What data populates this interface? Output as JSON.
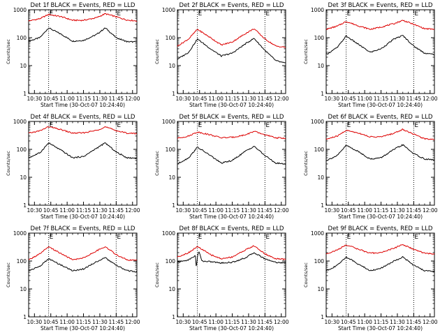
{
  "chart_data": [
    {
      "type": "line",
      "title": "Det 1f BLACK = Events, RED = LLD",
      "xlabel": "Start Time (30-Oct-07 10:24:40)",
      "ylabel": "Counts/sec",
      "x_ticks": [
        "10:30",
        "10:45",
        "11:00",
        "11:15",
        "11:30",
        "11:45",
        "12:00"
      ],
      "y_ticks": [
        "1",
        "10",
        "100",
        "1000"
      ],
      "y_scale": "log",
      "ylim": [
        1,
        1000
      ],
      "xlim": [
        "10:24:40",
        "12:04:00"
      ],
      "grid": false,
      "markers": [
        {
          "label": "E",
          "time": "10:43:00"
        },
        {
          "label": "E",
          "time": "11:45:00"
        }
      ],
      "series": [
        {
          "color": "#000000",
          "x": [
            "10:24:40",
            "10:35:00",
            "10:43:00",
            "10:55:00",
            "11:05:00",
            "11:15:00",
            "11:27:00",
            "11:35:00",
            "11:45:00",
            "11:55:00",
            "12:04:00"
          ],
          "values": [
            75,
            100,
            225,
            130,
            75,
            80,
            130,
            225,
            100,
            72,
            70
          ]
        },
        {
          "color": "#dd0000",
          "x": [
            "10:24:40",
            "10:35:00",
            "10:43:00",
            "10:55:00",
            "11:05:00",
            "11:15:00",
            "11:27:00",
            "11:35:00",
            "11:45:00",
            "11:55:00",
            "12:04:00"
          ],
          "values": [
            400,
            480,
            680,
            560,
            420,
            420,
            520,
            720,
            560,
            430,
            400
          ]
        }
      ]
    },
    {
      "type": "line",
      "title": "Det 2f BLACK = Events, RED = LLD",
      "xlabel": "Start Time (30-Oct-07 10:24:40)",
      "ylabel": "Counts/sec",
      "x_ticks": [
        "10:30",
        "10:45",
        "11:00",
        "11:15",
        "11:30",
        "11:45",
        "12:00"
      ],
      "y_ticks": [
        "1",
        "10",
        "100",
        "1000"
      ],
      "y_scale": "log",
      "ylim": [
        1,
        1000
      ],
      "xlim": [
        "10:24:40",
        "12:04:00"
      ],
      "grid": false,
      "markers": [
        {
          "label": "E",
          "time": "10:43:00"
        },
        {
          "label": "E",
          "time": "11:45:00"
        }
      ],
      "series": [
        {
          "color": "#000000",
          "x": [
            "10:24:40",
            "10:35:00",
            "10:43:00",
            "10:55:00",
            "11:05:00",
            "11:15:00",
            "11:27:00",
            "11:35:00",
            "11:45:00",
            "11:55:00",
            "12:04:00"
          ],
          "values": [
            17,
            30,
            90,
            40,
            22,
            28,
            60,
            95,
            35,
            15,
            12
          ]
        },
        {
          "color": "#dd0000",
          "x": [
            "10:24:40",
            "10:35:00",
            "10:43:00",
            "10:55:00",
            "11:05:00",
            "11:15:00",
            "11:27:00",
            "11:35:00",
            "11:45:00",
            "11:55:00",
            "12:04:00"
          ],
          "values": [
            50,
            90,
            200,
            100,
            55,
            70,
            140,
            210,
            90,
            50,
            45
          ]
        }
      ]
    },
    {
      "type": "line",
      "title": "Det 3f BLACK = Events, RED = LLD",
      "xlabel": "Start Time (30-Oct-07 10:24:40)",
      "ylabel": "Counts/sec",
      "x_ticks": [
        "10:30",
        "10:45",
        "11:00",
        "11:15",
        "11:30",
        "11:45",
        "12:00"
      ],
      "y_ticks": [
        "1",
        "10",
        "100",
        "1000"
      ],
      "y_scale": "log",
      "ylim": [
        1,
        1000
      ],
      "xlim": [
        "10:24:40",
        "12:04:00"
      ],
      "grid": false,
      "markers": [
        {
          "label": "E",
          "time": "10:43:00"
        },
        {
          "label": "E",
          "time": "11:45:00"
        }
      ],
      "series": [
        {
          "color": "#000000",
          "x": [
            "10:24:40",
            "10:35:00",
            "10:43:00",
            "10:55:00",
            "11:05:00",
            "11:15:00",
            "11:27:00",
            "11:35:00",
            "11:45:00",
            "11:55:00",
            "12:04:00"
          ],
          "values": [
            25,
            45,
            115,
            55,
            30,
            40,
            90,
            120,
            50,
            28,
            25
          ]
        },
        {
          "color": "#dd0000",
          "x": [
            "10:24:40",
            "10:35:00",
            "10:43:00",
            "10:55:00",
            "11:05:00",
            "11:15:00",
            "11:27:00",
            "11:35:00",
            "11:45:00",
            "11:55:00",
            "12:04:00"
          ],
          "values": [
            200,
            260,
            380,
            260,
            200,
            240,
            320,
            420,
            300,
            210,
            200
          ]
        }
      ]
    },
    {
      "type": "line",
      "title": "Det 4f BLACK = Events, RED = LLD",
      "xlabel": "Start Time (30-Oct-07 10:24:40)",
      "ylabel": "Counts/sec",
      "x_ticks": [
        "10:30",
        "10:45",
        "11:00",
        "11:15",
        "11:30",
        "11:45",
        "12:00"
      ],
      "y_ticks": [
        "1",
        "10",
        "100",
        "1000"
      ],
      "y_scale": "log",
      "ylim": [
        1,
        1000
      ],
      "xlim": [
        "10:24:40",
        "12:04:00"
      ],
      "grid": false,
      "markers": [
        {
          "label": "E",
          "time": "10:43:00"
        },
        {
          "label": "E",
          "time": "11:45:00"
        }
      ],
      "series": [
        {
          "color": "#000000",
          "x": [
            "10:24:40",
            "10:35:00",
            "10:43:00",
            "10:55:00",
            "11:05:00",
            "11:15:00",
            "11:27:00",
            "11:35:00",
            "11:45:00",
            "11:55:00",
            "12:04:00"
          ],
          "values": [
            50,
            75,
            170,
            90,
            50,
            55,
            110,
            170,
            80,
            50,
            48
          ]
        },
        {
          "color": "#dd0000",
          "x": [
            "10:24:40",
            "10:35:00",
            "10:43:00",
            "10:55:00",
            "11:05:00",
            "11:15:00",
            "11:27:00",
            "11:35:00",
            "11:45:00",
            "11:55:00",
            "12:04:00"
          ],
          "values": [
            380,
            460,
            650,
            500,
            380,
            390,
            480,
            640,
            470,
            380,
            370
          ]
        }
      ]
    },
    {
      "type": "line",
      "title": "Det 5f BLACK = Events, RED = LLD",
      "xlabel": "Start Time (30-Oct-07 10:24:40)",
      "ylabel": "Counts/sec",
      "x_ticks": [
        "10:30",
        "10:45",
        "11:00",
        "11:15",
        "11:30",
        "11:45",
        "12:00"
      ],
      "y_ticks": [
        "1",
        "10",
        "100",
        "1000"
      ],
      "y_scale": "log",
      "ylim": [
        1,
        1000
      ],
      "xlim": [
        "10:24:40",
        "12:04:00"
      ],
      "grid": false,
      "markers": [
        {
          "label": "E",
          "time": "10:43:00"
        },
        {
          "label": "E",
          "time": "11:45:00"
        }
      ],
      "series": [
        {
          "color": "#000000",
          "x": [
            "10:24:40",
            "10:35:00",
            "10:43:00",
            "10:55:00",
            "11:05:00",
            "11:15:00",
            "11:27:00",
            "11:35:00",
            "11:45:00",
            "11:55:00",
            "12:04:00"
          ],
          "values": [
            30,
            50,
            120,
            60,
            32,
            40,
            85,
            130,
            60,
            32,
            30
          ]
        },
        {
          "color": "#dd0000",
          "x": [
            "10:24:40",
            "10:35:00",
            "10:43:00",
            "10:55:00",
            "11:05:00",
            "11:15:00",
            "11:27:00",
            "11:35:00",
            "11:45:00",
            "11:55:00",
            "12:04:00"
          ],
          "values": [
            250,
            300,
            420,
            330,
            260,
            270,
            330,
            440,
            330,
            260,
            250
          ]
        }
      ]
    },
    {
      "type": "line",
      "title": "Det 6f BLACK = Events, RED = LLD",
      "xlabel": "Start Time (30-Oct-07 10:24:40)",
      "ylabel": "Counts/sec",
      "x_ticks": [
        "10:30",
        "10:45",
        "11:00",
        "11:15",
        "11:30",
        "11:45",
        "12:00"
      ],
      "y_ticks": [
        "1",
        "10",
        "100",
        "1000"
      ],
      "y_scale": "log",
      "ylim": [
        1,
        1000
      ],
      "xlim": [
        "10:24:40",
        "12:04:00"
      ],
      "grid": false,
      "markers": [
        {
          "label": "E",
          "time": "10:43:00"
        },
        {
          "label": "E",
          "time": "11:45:00"
        }
      ],
      "series": [
        {
          "color": "#000000",
          "x": [
            "10:24:40",
            "10:35:00",
            "10:43:00",
            "10:55:00",
            "11:05:00",
            "11:15:00",
            "11:27:00",
            "11:35:00",
            "11:45:00",
            "11:55:00",
            "12:04:00"
          ],
          "values": [
            40,
            60,
            140,
            80,
            45,
            50,
            100,
            145,
            70,
            45,
            42
          ]
        },
        {
          "color": "#dd0000",
          "x": [
            "10:24:40",
            "10:35:00",
            "10:43:00",
            "10:55:00",
            "11:05:00",
            "11:15:00",
            "11:27:00",
            "11:35:00",
            "11:45:00",
            "11:55:00",
            "12:04:00"
          ],
          "values": [
            230,
            300,
            480,
            380,
            280,
            280,
            380,
            520,
            350,
            240,
            230
          ]
        }
      ]
    },
    {
      "type": "line",
      "title": "Det 7f BLACK = Events, RED = LLD",
      "xlabel": "Start Time (30-Oct-07 10:24:40)",
      "ylabel": "Counts/sec",
      "x_ticks": [
        "10:30",
        "10:45",
        "11:00",
        "11:15",
        "11:30",
        "11:45",
        "12:00"
      ],
      "y_ticks": [
        "1",
        "10",
        "100",
        "1000"
      ],
      "y_scale": "log",
      "ylim": [
        1,
        1000
      ],
      "xlim": [
        "10:24:40",
        "12:04:00"
      ],
      "grid": false,
      "markers": [
        {
          "label": "E",
          "time": "10:43:00"
        },
        {
          "label": "E",
          "time": "11:45:00"
        }
      ],
      "series": [
        {
          "color": "#000000",
          "x": [
            "10:24:40",
            "10:35:00",
            "10:43:00",
            "10:55:00",
            "11:05:00",
            "11:15:00",
            "11:27:00",
            "11:35:00",
            "11:45:00",
            "11:55:00",
            "12:04:00"
          ],
          "values": [
            45,
            65,
            120,
            70,
            45,
            52,
            95,
            130,
            70,
            45,
            42
          ]
        },
        {
          "color": "#dd0000",
          "x": [
            "10:24:40",
            "10:35:00",
            "10:43:00",
            "10:55:00",
            "11:05:00",
            "11:15:00",
            "11:27:00",
            "11:35:00",
            "11:45:00",
            "11:55:00",
            "12:04:00"
          ],
          "values": [
            110,
            180,
            320,
            180,
            110,
            130,
            230,
            330,
            170,
            110,
            105
          ]
        }
      ]
    },
    {
      "type": "line",
      "title": "Det 8f BLACK = Events, RED = LLD",
      "xlabel": "Start Time (30-Oct-07 10:24:40)",
      "ylabel": "Counts/sec",
      "x_ticks": [
        "10:30",
        "10:45",
        "11:00",
        "11:15",
        "11:30",
        "11:45",
        "12:00"
      ],
      "y_ticks": [
        "1",
        "10",
        "100",
        "1000"
      ],
      "y_scale": "log",
      "ylim": [
        1,
        1000
      ],
      "xlim": [
        "10:24:40",
        "12:04:00"
      ],
      "grid": false,
      "markers": [
        {
          "label": "E",
          "time": "10:43:00"
        },
        {
          "label": "E",
          "time": "11:45:00"
        }
      ],
      "series": [
        {
          "color": "#000000",
          "x": [
            "10:24:40",
            "10:35:00",
            "10:41:30",
            "10:42:00",
            "10:43:30",
            "10:45:00",
            "10:47:00",
            "10:55:00",
            "11:05:00",
            "11:15:00",
            "11:27:00",
            "11:35:00",
            "11:45:00",
            "11:55:00",
            "12:04:00"
          ],
          "values": [
            90,
            110,
            160,
            50,
            200,
            200,
            100,
            95,
            85,
            90,
            130,
            200,
            120,
            90,
            85
          ]
        },
        {
          "color": "#dd0000",
          "x": [
            "10:24:40",
            "10:35:00",
            "10:43:00",
            "10:55:00",
            "11:05:00",
            "11:15:00",
            "11:27:00",
            "11:35:00",
            "11:45:00",
            "11:55:00",
            "12:04:00"
          ],
          "values": [
            140,
            200,
            330,
            170,
            120,
            140,
            250,
            350,
            180,
            120,
            115
          ]
        }
      ]
    },
    {
      "type": "line",
      "title": "Det 9f BLACK = Events, RED = LLD",
      "xlabel": "Start Time (30-Oct-07 10:24:40)",
      "ylabel": "Counts/sec",
      "x_ticks": [
        "10:30",
        "10:45",
        "11:00",
        "11:15",
        "11:30",
        "11:45",
        "12:00"
      ],
      "y_ticks": [
        "1",
        "10",
        "100",
        "1000"
      ],
      "y_scale": "log",
      "ylim": [
        1,
        1000
      ],
      "xlim": [
        "10:24:40",
        "12:04:00"
      ],
      "grid": false,
      "markers": [
        {
          "label": "E",
          "time": "10:43:00"
        },
        {
          "label": "E",
          "time": "11:45:00"
        }
      ],
      "series": [
        {
          "color": "#000000",
          "x": [
            "10:24:40",
            "10:35:00",
            "10:43:00",
            "10:55:00",
            "11:05:00",
            "11:15:00",
            "11:27:00",
            "11:35:00",
            "11:45:00",
            "11:55:00",
            "12:04:00"
          ],
          "values": [
            45,
            70,
            140,
            75,
            45,
            55,
            100,
            140,
            70,
            45,
            42
          ]
        },
        {
          "color": "#dd0000",
          "x": [
            "10:24:40",
            "10:35:00",
            "10:43:00",
            "10:55:00",
            "11:05:00",
            "11:15:00",
            "11:27:00",
            "11:35:00",
            "11:45:00",
            "11:55:00",
            "12:04:00"
          ],
          "values": [
            180,
            250,
            380,
            260,
            190,
            200,
            290,
            390,
            260,
            190,
            180
          ]
        }
      ]
    }
  ]
}
